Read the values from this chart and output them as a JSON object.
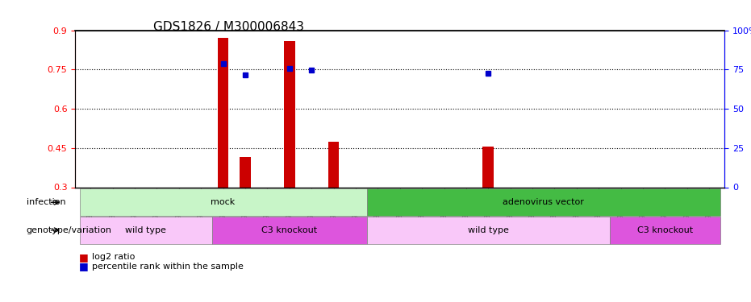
{
  "title": "GDS1826 / M300006843",
  "samples": [
    "GSM87316",
    "GSM87317",
    "GSM93998",
    "GSM93999",
    "GSM94000",
    "GSM94001",
    "GSM93633",
    "GSM93634",
    "GSM93651",
    "GSM93652",
    "GSM93653",
    "GSM93654",
    "GSM93657",
    "GSM86643",
    "GSM87306",
    "GSM87307",
    "GSM87308",
    "GSM87309",
    "GSM87310",
    "GSM87311",
    "GSM87312",
    "GSM87313",
    "GSM87314",
    "GSM87315",
    "GSM93655",
    "GSM93656",
    "GSM93658",
    "GSM93659",
    "GSM93660"
  ],
  "log2_ratio": [
    0,
    0,
    0,
    0,
    0,
    0,
    0.87,
    0.415,
    0,
    0.86,
    0,
    0.475,
    0,
    0,
    0,
    0,
    0,
    0,
    0.455,
    0,
    0,
    0,
    0,
    0,
    0,
    0,
    0,
    0,
    0
  ],
  "percentile_rank": [
    null,
    null,
    null,
    null,
    null,
    null,
    0.785,
    0.715,
    null,
    0.755,
    0.745,
    null,
    null,
    null,
    null,
    null,
    null,
    null,
    0.725,
    null,
    null,
    null,
    null,
    null,
    null,
    null,
    null,
    null,
    null
  ],
  "ylim_left": [
    0.3,
    0.9
  ],
  "ylim_right": [
    0,
    100
  ],
  "yticks_left": [
    0.3,
    0.45,
    0.6,
    0.75,
    0.9
  ],
  "yticks_right": [
    0,
    25,
    50,
    75,
    100
  ],
  "bar_color": "#cc0000",
  "dot_color": "#0000cc",
  "infection_groups": [
    {
      "label": "mock",
      "start": 0,
      "end": 12
    },
    {
      "label": "adenovirus vector",
      "start": 13,
      "end": 28
    }
  ],
  "genotype_groups": [
    {
      "label": "wild type",
      "start": 0,
      "end": 5
    },
    {
      "label": "C3 knockout",
      "start": 6,
      "end": 12
    },
    {
      "label": "wild type",
      "start": 13,
      "end": 23
    },
    {
      "label": "C3 knockout",
      "start": 24,
      "end": 28
    }
  ],
  "infection_label": "infection",
  "genotype_label": "genotype/variation",
  "legend_red": "log2 ratio",
  "legend_blue": "percentile rank within the sample",
  "title_fontsize": 11,
  "infection_light_green": "#c8f5c8",
  "infection_dark_green": "#44bb44",
  "genotype_light_pink": "#f9c8f9",
  "genotype_dark_pink": "#dd55dd"
}
